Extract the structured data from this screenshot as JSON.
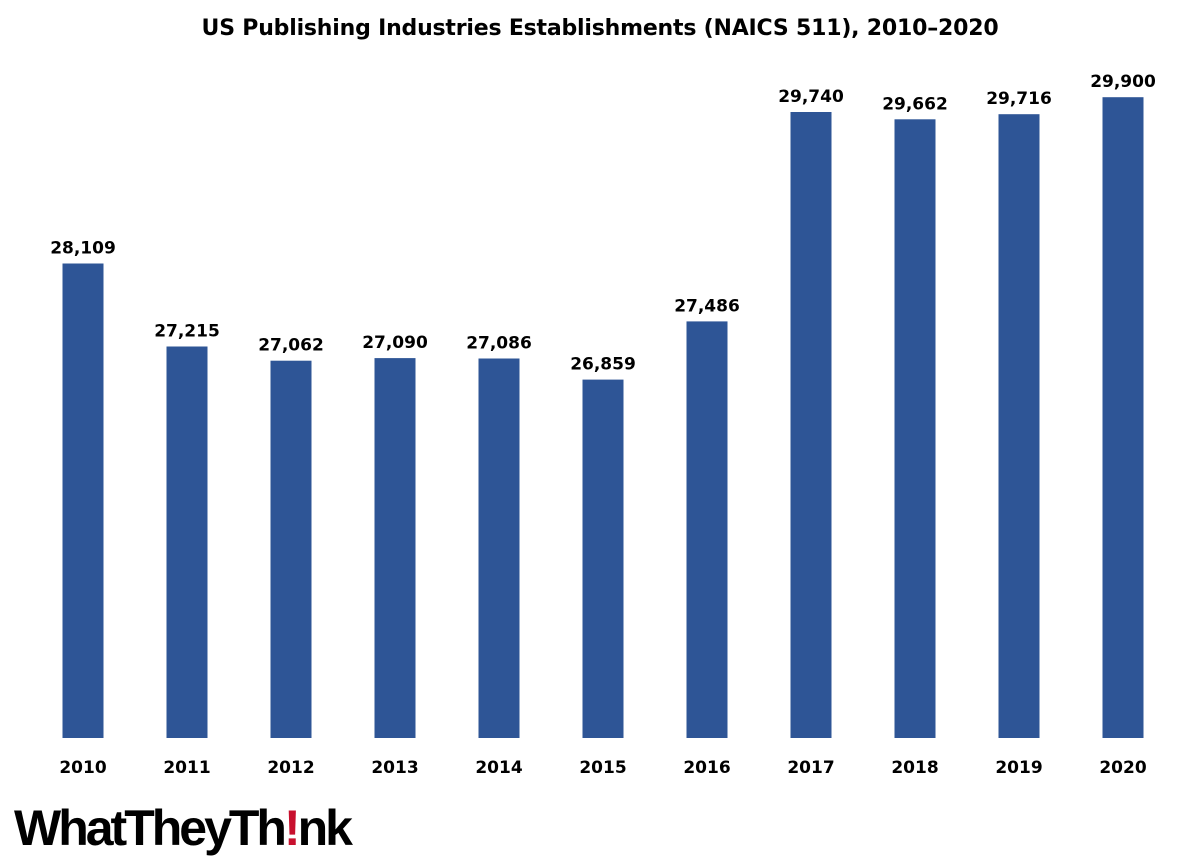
{
  "chart_data": {
    "type": "bar",
    "title": "US Publishing Industries Establishments (NAICS 511), 2010–2020",
    "xlabel": "",
    "ylabel": "",
    "categories": [
      "2010",
      "2011",
      "2012",
      "2013",
      "2014",
      "2015",
      "2016",
      "2017",
      "2018",
      "2019",
      "2020"
    ],
    "values": [
      28109,
      27215,
      27062,
      27090,
      27086,
      26859,
      27486,
      29740,
      29662,
      29716,
      29900
    ],
    "value_labels": [
      "28,109",
      "27,215",
      "27,062",
      "27,090",
      "27,086",
      "26,859",
      "27,486",
      "29,740",
      "29,662",
      "29,716",
      "29,900"
    ],
    "ylim": [
      23000,
      30300
    ],
    "grid": false,
    "legend": "none",
    "bar_color": "#2e5596"
  },
  "logo": {
    "text_before": "WhatTheyTh",
    "mark": "!",
    "text_after": "nk",
    "mark_color": "#c8102e"
  }
}
